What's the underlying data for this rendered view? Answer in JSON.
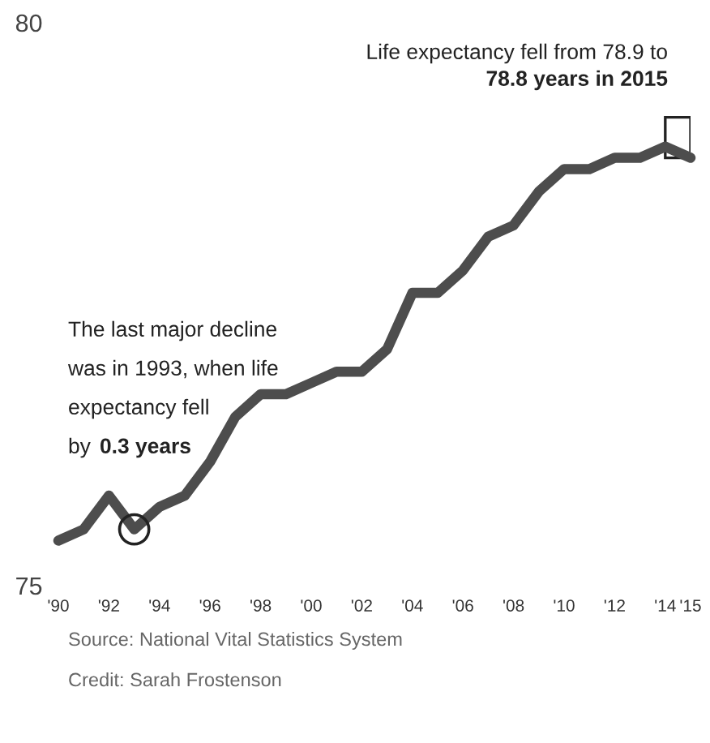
{
  "chart_data": {
    "type": "line",
    "x": [
      1990,
      1991,
      1992,
      1993,
      1994,
      1995,
      1996,
      1997,
      1998,
      1999,
      2000,
      2001,
      2002,
      2003,
      2004,
      2005,
      2006,
      2007,
      2008,
      2009,
      2010,
      2011,
      2012,
      2013,
      2014,
      2015
    ],
    "series": [
      {
        "color": "#4d4d4d",
        "values": [
          75.4,
          75.5,
          75.8,
          75.5,
          75.7,
          75.8,
          76.1,
          76.5,
          76.7,
          76.7,
          76.8,
          76.9,
          76.9,
          77.1,
          77.6,
          77.6,
          77.8,
          78.1,
          78.2,
          78.5,
          78.7,
          78.7,
          78.8,
          78.8,
          78.9,
          78.8
        ]
      },
      {
        "type": "scatter",
        "x": [
          1993
        ],
        "values": [
          75.5
        ],
        "color": "#222222",
        "marker": "circle"
      }
    ],
    "xlim": [
      1990,
      2015
    ],
    "xticks": [
      {
        "value": 1990,
        "label": "'90"
      },
      {
        "value": 1992,
        "label": "'92"
      },
      {
        "value": 1994,
        "label": "'94"
      },
      {
        "value": 1996,
        "label": "'96"
      },
      {
        "value": 1998,
        "label": "'98"
      },
      {
        "value": 2000,
        "label": "'00"
      },
      {
        "value": 2002,
        "label": "'02"
      },
      {
        "value": 2004,
        "label": "'04"
      },
      {
        "value": 2006,
        "label": "'06"
      },
      {
        "value": 2008,
        "label": "'08"
      },
      {
        "value": 2010,
        "label": "'10"
      },
      {
        "value": 2012,
        "label": "'12"
      },
      {
        "value": 2014,
        "label": "'14"
      },
      {
        "value": 2015,
        "label": "'15"
      }
    ],
    "ylim": [
      75,
      80
    ],
    "yticks": [
      75,
      80
    ],
    "grid": false,
    "marker": "none",
    "line_style": "solid",
    "annotations": [
      "Life expectancy fell from 78.9 to",
      "78.8 years in 2015",
      "The last major decline",
      "was in 1993, when life",
      "expectancy fell",
      "by",
      "0.3 years",
      "Source: National Vital Statistics System",
      "Credit: Sarah Frostenson"
    ]
  }
}
